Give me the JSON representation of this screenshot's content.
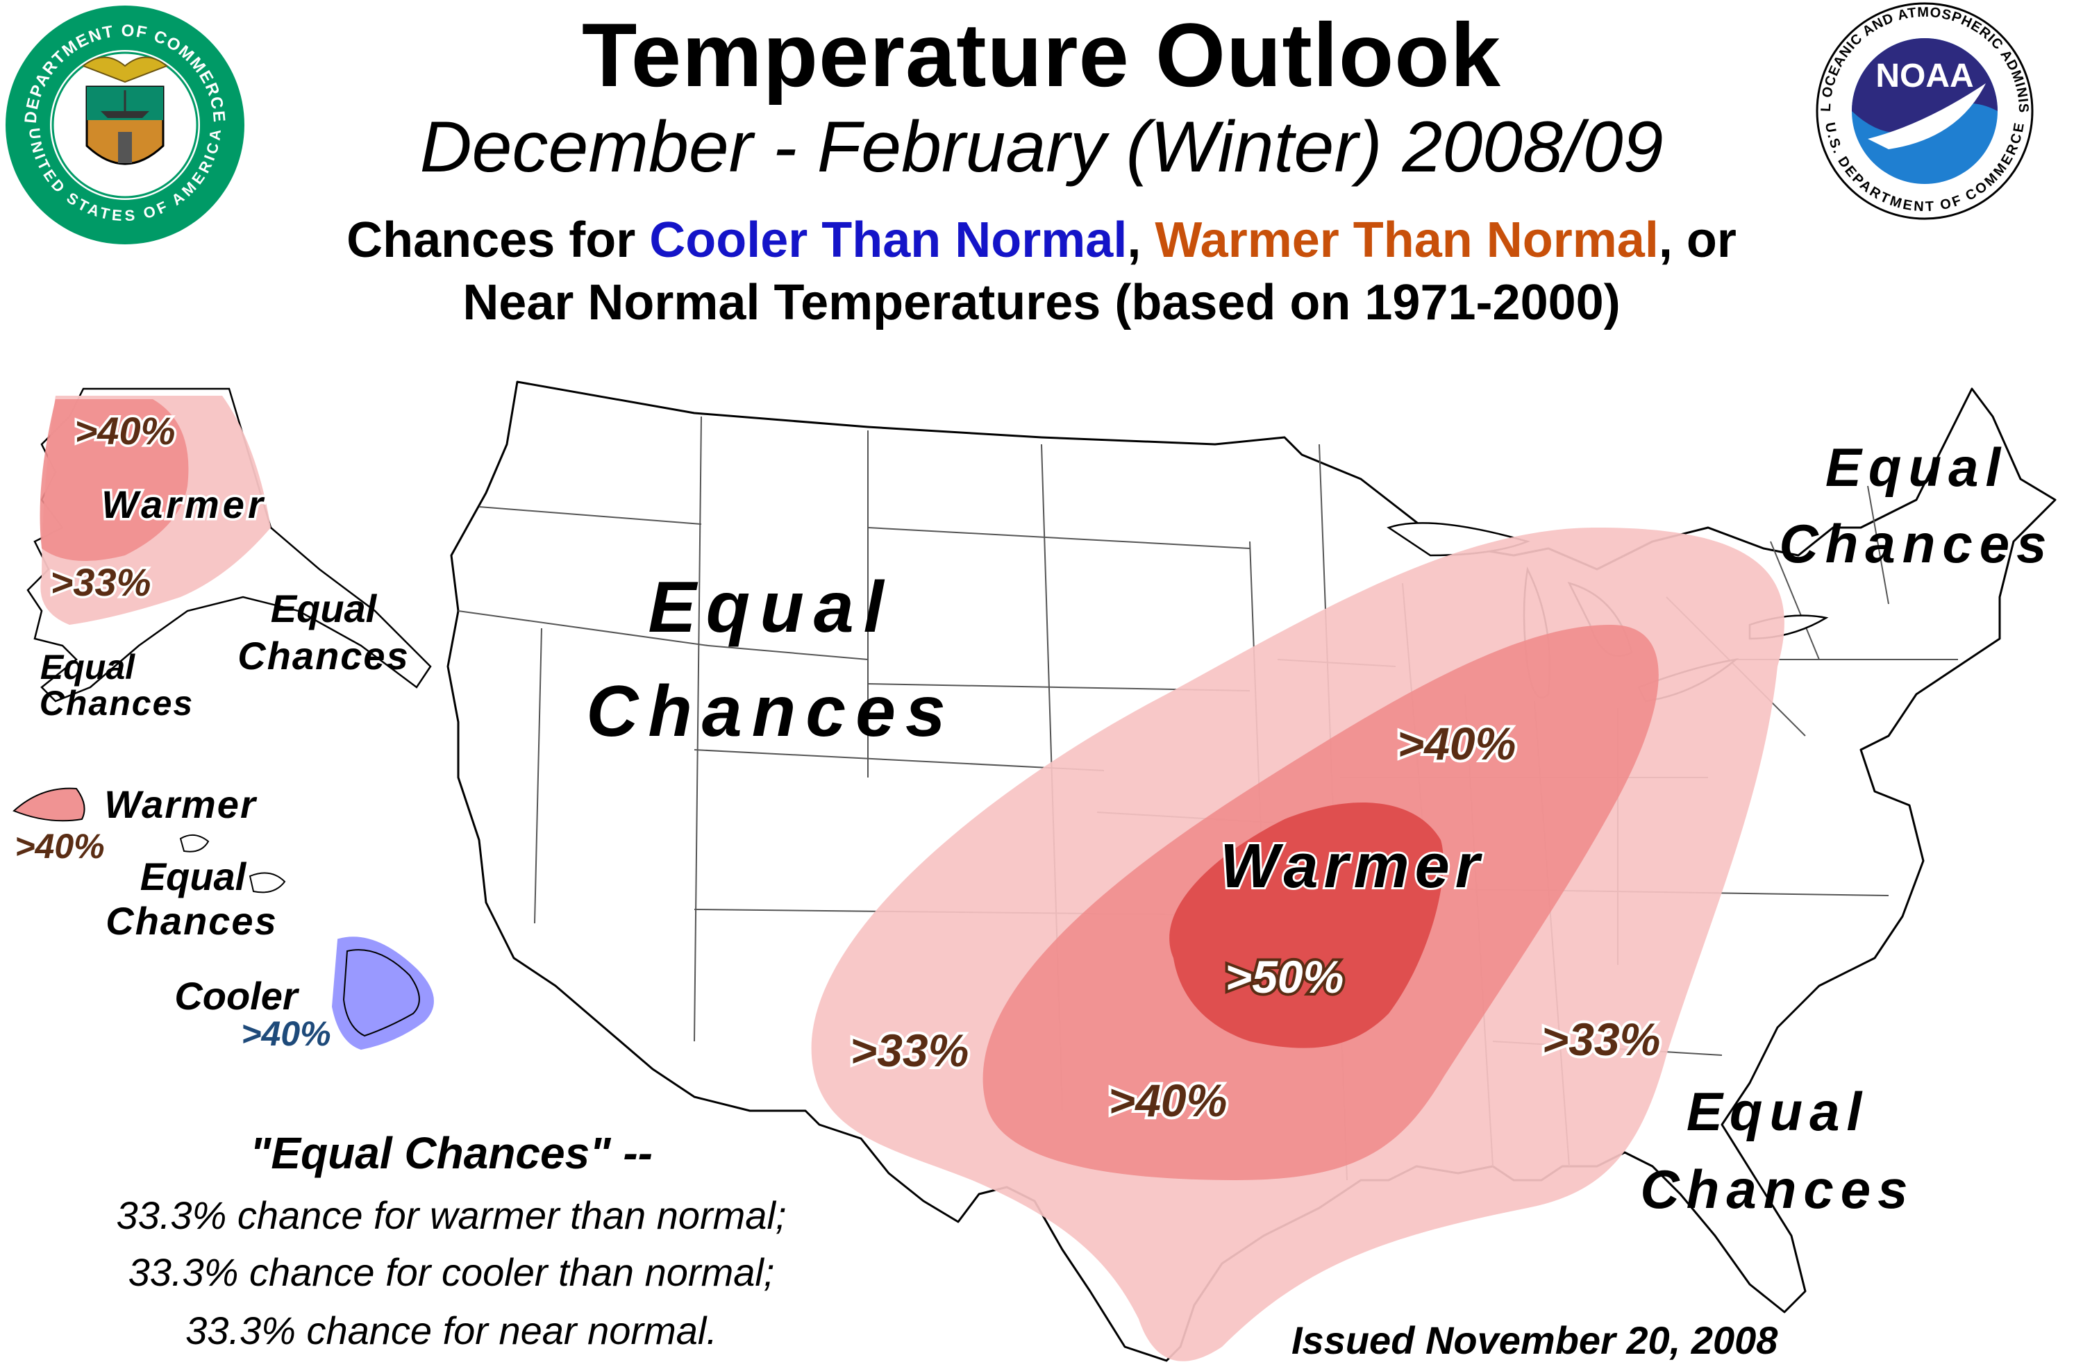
{
  "header": {
    "title": "Temperature Outlook",
    "subtitle": "December - February (Winter) 2008/09",
    "heading_prefix": "Chances for ",
    "heading_cool": "Cooler Than Normal",
    "heading_sep": ", ",
    "heading_warm": "Warmer Than Normal",
    "heading_suffix": ", or",
    "heading_line2": "Near Normal Temperatures (based on 1971-2000)"
  },
  "logos": {
    "doc_seal_top": "DEPARTMENT OF COMMERCE",
    "doc_seal_bottom": "UNITED STATES OF AMERICA",
    "noaa_ring_top": "NATIONAL OCEANIC AND ATMOSPHERIC ADMINISTRATION",
    "noaa_ring_bottom": "U.S. DEPARTMENT OF COMMERCE",
    "noaa_word": "NOAA"
  },
  "map_labels": {
    "west": {
      "line1": "Equal",
      "line2": "Chances"
    },
    "northeast": {
      "line1": "Equal",
      "line2": "Chances"
    },
    "southeast": {
      "line1": "Equal",
      "line2": "Chances"
    },
    "center_category": "Warmer",
    "center_pct": ">50%",
    "midwest_pct": ">40%",
    "southwest_pct": ">33%",
    "texas_pct": ">40%",
    "southeast_pct": ">33%"
  },
  "alaska_labels": {
    "pct_high": ">40%",
    "category": "Warmer",
    "pct_low": ">33%",
    "ec_east": {
      "line1": "Equal",
      "line2": "Chances"
    },
    "ec_west": {
      "line1": "Equal",
      "line2": "Chances"
    }
  },
  "hawaii_labels": {
    "warm_category": "Warmer",
    "warm_pct": ">40%",
    "ec": {
      "line1": "Equal",
      "line2": "Chances"
    },
    "cool_category": "Cooler",
    "cool_pct": ">40%"
  },
  "legend": {
    "title": "\"Equal Chances\" --",
    "line1": "33.3% chance for warmer than normal;",
    "line2": "33.3% chance for cooler than normal;",
    "line3": "33.3% chance for near normal."
  },
  "issued": "Issued November 20, 2008",
  "colors": {
    "warm_33": "#f7c3c3",
    "warm_40": "#ef8d8d",
    "warm_50": "#dd4848",
    "cool_40": "#9999ff",
    "cool_text": "#1414c8",
    "warm_text": "#c8500a",
    "pct_text": "#5a2d14"
  }
}
